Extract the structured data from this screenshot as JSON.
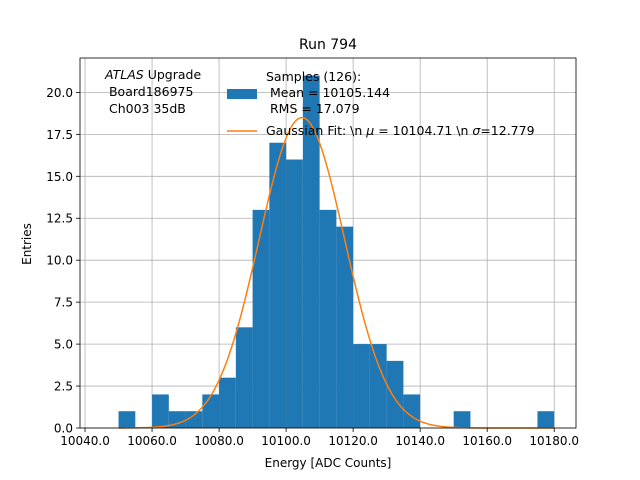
{
  "chart_data": {
    "type": "bar",
    "title": "Run 794",
    "xlabel": "Energy [ADC Counts]",
    "ylabel": "Entries",
    "xlim": [
      10038.5,
      10186.5
    ],
    "ylim": [
      0,
      22.05
    ],
    "grid": true,
    "x_ticks": [
      10040,
      10060,
      10080,
      10100,
      10120,
      10140,
      10160,
      10180
    ],
    "x_tick_labels": [
      "10040.0",
      "10060.0",
      "10080.0",
      "10100.0",
      "10120.0",
      "10140.0",
      "10160.0",
      "10180.0"
    ],
    "y_ticks": [
      0,
      2.5,
      5,
      7.5,
      10,
      12.5,
      15,
      17.5,
      20
    ],
    "y_tick_labels": [
      "0.0",
      "2.5",
      "5.0",
      "7.5",
      "10.0",
      "12.5",
      "15.0",
      "17.5",
      "20.0"
    ],
    "bin_edges": [
      10050,
      10055,
      10060,
      10065,
      10070,
      10075,
      10080,
      10085,
      10090,
      10095,
      10100,
      10105,
      10110,
      10115,
      10120,
      10125,
      10130,
      10135,
      10140,
      10145,
      10150,
      10155,
      10160,
      10165,
      10170,
      10175,
      10180
    ],
    "counts": [
      1,
      0,
      2,
      1,
      1,
      2,
      3,
      6,
      13,
      17,
      16,
      21,
      13,
      12,
      5,
      5,
      4,
      2,
      0,
      0,
      1,
      0,
      0,
      0,
      0,
      1
    ],
    "histogram_color": "#1f77b4",
    "fit": {
      "mu": 10104.71,
      "sigma": 12.779,
      "amplitude": 18.5,
      "color": "#ff7f0e"
    },
    "annotation": {
      "line1_italic": "ATLAS",
      "line1_rest": " Upgrade",
      "line2": " Board186975",
      "line3": " Ch003 35dB"
    },
    "legend": {
      "position": "top-right",
      "samples_line1": "Samples (126):",
      "samples_line2": " Mean = 10105.144",
      "samples_line3": " RMS = 17.079",
      "fit_prefix": "Gaussian Fit: \\n ",
      "fit_mu_symbol": "μ",
      "fit_mid": " = 10104.71 \\n ",
      "fit_sigma_symbol": "σ",
      "fit_suffix": "=12.779"
    }
  }
}
